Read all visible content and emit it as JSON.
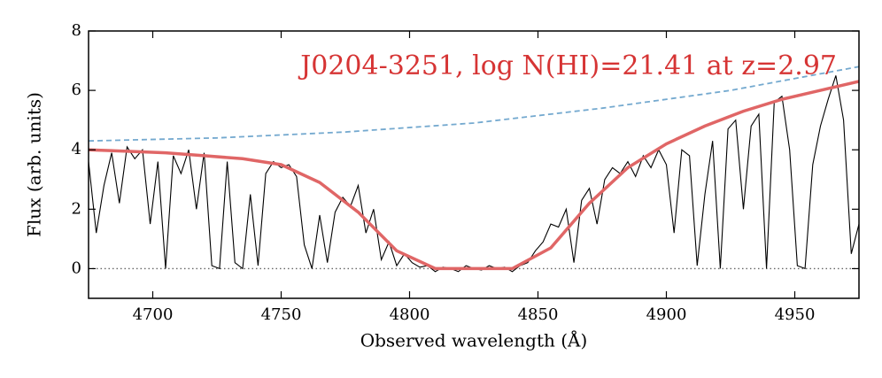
{
  "chart_data": {
    "type": "line",
    "annotation": "J0204-3251, log N(HI)=21.41 at z=2.97",
    "xlabel": "Observed wavelength (Å)",
    "ylabel": "Flux (arb. units)",
    "xlim": [
      4675,
      4975
    ],
    "ylim": [
      -1,
      8
    ],
    "xticks": [
      4700,
      4750,
      4800,
      4850,
      4900,
      4950
    ],
    "yticks": [
      0,
      2,
      4,
      6,
      8
    ],
    "hlines": [
      0
    ],
    "series": [
      {
        "color": "#000000",
        "style": "solid",
        "x": [
          4675,
          4678,
          4681,
          4684,
          4687,
          4690,
          4693,
          4696,
          4699,
          4702,
          4705,
          4708,
          4711,
          4714,
          4717,
          4720,
          4723,
          4726,
          4729,
          4732,
          4735,
          4738,
          4741,
          4744,
          4747,
          4750,
          4753,
          4756,
          4759,
          4762,
          4765,
          4768,
          4771,
          4774,
          4777,
          4780,
          4783,
          4786,
          4789,
          4792,
          4795,
          4798,
          4801,
          4804,
          4807,
          4810,
          4813,
          4816,
          4819,
          4822,
          4825,
          4828,
          4831,
          4834,
          4837,
          4840,
          4843,
          4846,
          4849,
          4852,
          4855,
          4858,
          4861,
          4864,
          4867,
          4870,
          4873,
          4876,
          4879,
          4882,
          4885,
          4888,
          4891,
          4894,
          4897,
          4900,
          4903,
          4906,
          4909,
          4912,
          4915,
          4918,
          4921,
          4924,
          4927,
          4930,
          4933,
          4936,
          4939,
          4942,
          4945,
          4948,
          4951,
          4954,
          4957,
          4960,
          4963,
          4966,
          4969,
          4972,
          4975
        ],
        "values": [
          3.6,
          1.2,
          2.8,
          3.9,
          2.2,
          4.1,
          3.7,
          4.0,
          1.5,
          3.6,
          0.0,
          3.8,
          3.2,
          4.0,
          2.0,
          3.9,
          0.1,
          0.0,
          3.6,
          0.2,
          0.0,
          2.5,
          0.1,
          3.2,
          3.6,
          3.4,
          3.5,
          3.1,
          0.8,
          0.0,
          1.8,
          0.2,
          1.9,
          2.4,
          2.1,
          2.8,
          1.2,
          2.0,
          0.3,
          0.9,
          0.1,
          0.5,
          0.2,
          0.05,
          0.1,
          -0.1,
          0.05,
          0.0,
          -0.1,
          0.1,
          0.0,
          -0.05,
          0.1,
          0.0,
          0.05,
          -0.1,
          0.1,
          0.2,
          0.6,
          0.9,
          1.5,
          1.4,
          2.0,
          0.2,
          2.3,
          2.7,
          1.5,
          3.0,
          3.4,
          3.2,
          3.6,
          3.1,
          3.8,
          3.4,
          4.0,
          3.5,
          1.2,
          4.0,
          3.8,
          0.1,
          2.5,
          4.3,
          0.0,
          4.7,
          5.0,
          2.0,
          4.8,
          5.2,
          0.0,
          5.6,
          5.8,
          4.0,
          0.1,
          0.0,
          3.5,
          4.8,
          5.7,
          6.5,
          5.0,
          0.5,
          1.5
        ]
      },
      {
        "color": "#e06666",
        "style": "solid",
        "x": [
          4675,
          4690,
          4705,
          4720,
          4735,
          4750,
          4765,
          4780,
          4795,
          4810,
          4825,
          4840,
          4855,
          4870,
          4885,
          4900,
          4915,
          4930,
          4945,
          4960,
          4975
        ],
        "values": [
          4.0,
          3.95,
          3.9,
          3.8,
          3.7,
          3.5,
          2.9,
          1.9,
          0.6,
          0.0,
          0.0,
          0.0,
          0.7,
          2.2,
          3.4,
          4.2,
          4.8,
          5.3,
          5.7,
          6.0,
          6.3
        ]
      },
      {
        "color": "#74a9cf",
        "style": "dashed",
        "x": [
          4675,
          4725,
          4775,
          4825,
          4875,
          4925,
          4975
        ],
        "values": [
          4.3,
          4.4,
          4.6,
          4.9,
          5.4,
          6.0,
          6.8
        ]
      }
    ]
  }
}
